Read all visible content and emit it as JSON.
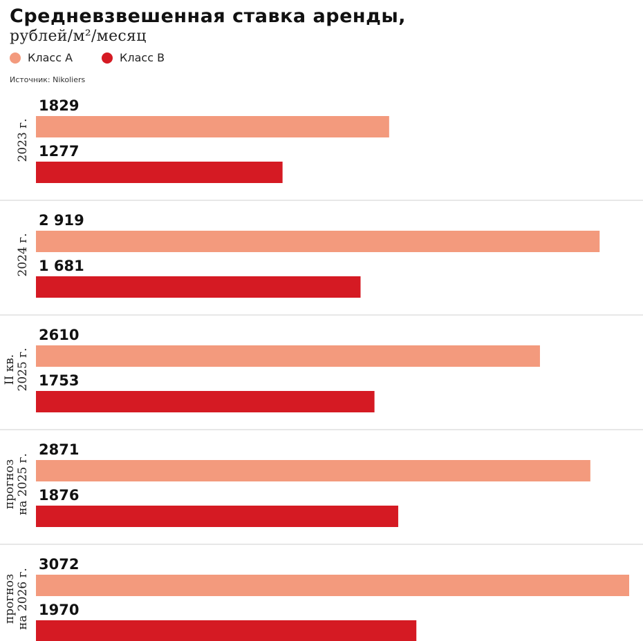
{
  "header": {
    "title": "Средневзвешенная ставка аренды,",
    "subtitle": "рублей/м²/месяц",
    "source": "Источник: Nikoliers"
  },
  "legend": {
    "items": [
      {
        "label": "Класс А",
        "color": "#F39A7D"
      },
      {
        "label": "Класс В",
        "color": "#D51A23"
      }
    ]
  },
  "chart_data": {
    "type": "bar",
    "orientation": "horizontal",
    "title": "Средневзвешенная ставка аренды,",
    "subtitle": "рублей/м²/месяц",
    "xlim": [
      0,
      3072
    ],
    "grid": false,
    "legend_position": "top-left",
    "categories": [
      {
        "lines": [
          "2023 г."
        ]
      },
      {
        "lines": [
          "2024 г."
        ]
      },
      {
        "lines": [
          "II кв.",
          "2025 г."
        ]
      },
      {
        "lines": [
          "прогноз",
          "на 2025 г."
        ]
      },
      {
        "lines": [
          "прогноз",
          "на 2026 г."
        ]
      }
    ],
    "series": [
      {
        "name": "Класс А",
        "color": "#F39A7D",
        "values": [
          1829,
          2919,
          2610,
          2871,
          3072
        ],
        "labels": [
          "1829",
          "2 919",
          "2610",
          "2871",
          "3072"
        ]
      },
      {
        "name": "Класс В",
        "color": "#D51A23",
        "values": [
          1277,
          1681,
          1753,
          1876,
          1970
        ],
        "labels": [
          "1277",
          "1 681",
          "1753",
          "1876",
          "1970"
        ]
      }
    ]
  }
}
